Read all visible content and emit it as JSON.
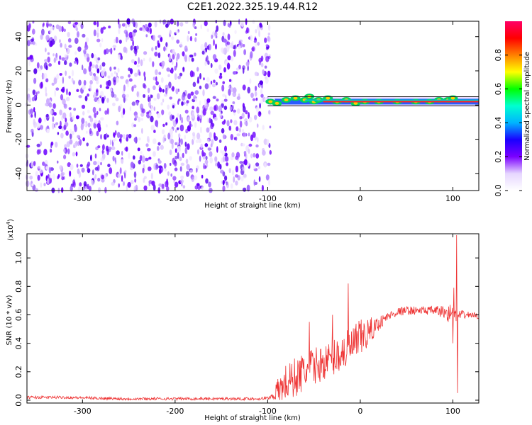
{
  "figure": {
    "title": "C2E1.2022.325.19.44.R12"
  },
  "chart_data": [
    {
      "type": "heatmap",
      "xlabel": "Height of straight line (km)",
      "ylabel": "Frequency (Hz)",
      "xlim": [
        -360,
        128
      ],
      "ylim": [
        -50,
        49
      ],
      "xticks": [
        "-300",
        "-200",
        "-100",
        "0",
        "100"
      ],
      "xtick_values": [
        -300,
        -200,
        -100,
        0,
        100
      ],
      "yticks": [
        "-40",
        "-20",
        "0",
        "20",
        "40"
      ],
      "ytick_values": [
        -40,
        -20,
        0,
        20,
        40
      ],
      "noise_region_x": [
        -360,
        -100
      ],
      "signal_line": {
        "x": [
          -100,
          128
        ],
        "frequency": 2
      },
      "signal_core": [
        [
          -97,
          2
        ],
        [
          -90,
          1
        ],
        [
          -80,
          3
        ],
        [
          -70,
          4
        ],
        [
          -60,
          3
        ],
        [
          -55,
          5
        ],
        [
          -50,
          2
        ],
        [
          -45,
          3
        ],
        [
          -35,
          4
        ],
        [
          -25,
          2
        ],
        [
          -15,
          3
        ],
        [
          -5,
          1
        ],
        [
          5,
          2
        ],
        [
          20,
          2
        ],
        [
          40,
          2
        ],
        [
          60,
          2
        ],
        [
          75,
          2
        ],
        [
          85,
          3
        ],
        [
          95,
          3
        ],
        [
          100,
          4
        ]
      ],
      "colorbar": {
        "label": "Normalized spectral amplitude",
        "ticks": [
          "0.0",
          "0.2",
          "0.4",
          "0.6",
          "0.8"
        ],
        "tick_values": [
          0.0,
          0.2,
          0.4,
          0.6,
          0.8
        ],
        "range": [
          0,
          1
        ],
        "colors": [
          "#ffffff",
          "#e6d6ff",
          "#7b00ff",
          "#1a00ff",
          "#00b4ff",
          "#00ffd0",
          "#00ff00",
          "#ffff00",
          "#ff8000",
          "#ff0000",
          "#ff0066"
        ]
      },
      "grid": false
    },
    {
      "type": "line",
      "xlabel": "Height of straight line (km)",
      "ylabel": "SNR (10 * v/v)",
      "scale_label": "(x10",
      "scale_exp": "4",
      "scale_close": ")",
      "xlim": [
        -360,
        128
      ],
      "ylim": [
        -0.02,
        1.17
      ],
      "xticks": [
        "-300",
        "-200",
        "-100",
        "0",
        "100"
      ],
      "xtick_values": [
        -300,
        -200,
        -100,
        0,
        100
      ],
      "yticks": [
        "0.0",
        "0.2",
        "0.4",
        "0.6",
        "0.8",
        "1.0"
      ],
      "ytick_values": [
        0.0,
        0.2,
        0.4,
        0.6,
        0.8,
        1.0
      ],
      "series": [
        {
          "color": "#ee3333",
          "envelope": {
            "x": [
              -360,
              -320,
              -260,
              -200,
              -140,
              -110,
              -100,
              -95,
              -90,
              -80,
              -70,
              -60,
              -50,
              -40,
              -30,
              -20,
              -10,
              0,
              10,
              20,
              30,
              40,
              50,
              60,
              70,
              80,
              90,
              95,
              100,
              105,
              110,
              120,
              128
            ],
            "y": [
              0.02,
              0.02,
              0.01,
              0.01,
              0.01,
              0.01,
              0.015,
              0.03,
              0.06,
              0.12,
              0.16,
              0.2,
              0.24,
              0.26,
              0.3,
              0.33,
              0.37,
              0.43,
              0.48,
              0.54,
              0.59,
              0.62,
              0.63,
              0.63,
              0.63,
              0.63,
              0.62,
              0.61,
              0.6,
              0.59,
              0.6,
              0.6,
              0.59
            ],
            "amp": [
              0.01,
              0.01,
              0.01,
              0.01,
              0.01,
              0.01,
              0.01,
              0.02,
              0.08,
              0.14,
              0.14,
              0.14,
              0.13,
              0.12,
              0.13,
              0.14,
              0.14,
              0.14,
              0.1,
              0.05,
              0.03,
              0.03,
              0.03,
              0.03,
              0.03,
              0.03,
              0.05,
              0.06,
              0.05,
              0.05,
              0.03,
              0.02,
              0.02
            ]
          },
          "spikes": [
            [
              -13,
              0.82
            ],
            [
              97,
              0.67
            ],
            [
              101,
              0.79
            ],
            [
              104,
              1.16
            ],
            [
              105,
              0.05
            ],
            [
              106,
              0.6
            ],
            [
              100,
              0.4
            ],
            [
              -55,
              0.55
            ],
            [
              -30,
              0.6
            ]
          ]
        }
      ],
      "grid": false
    }
  ]
}
